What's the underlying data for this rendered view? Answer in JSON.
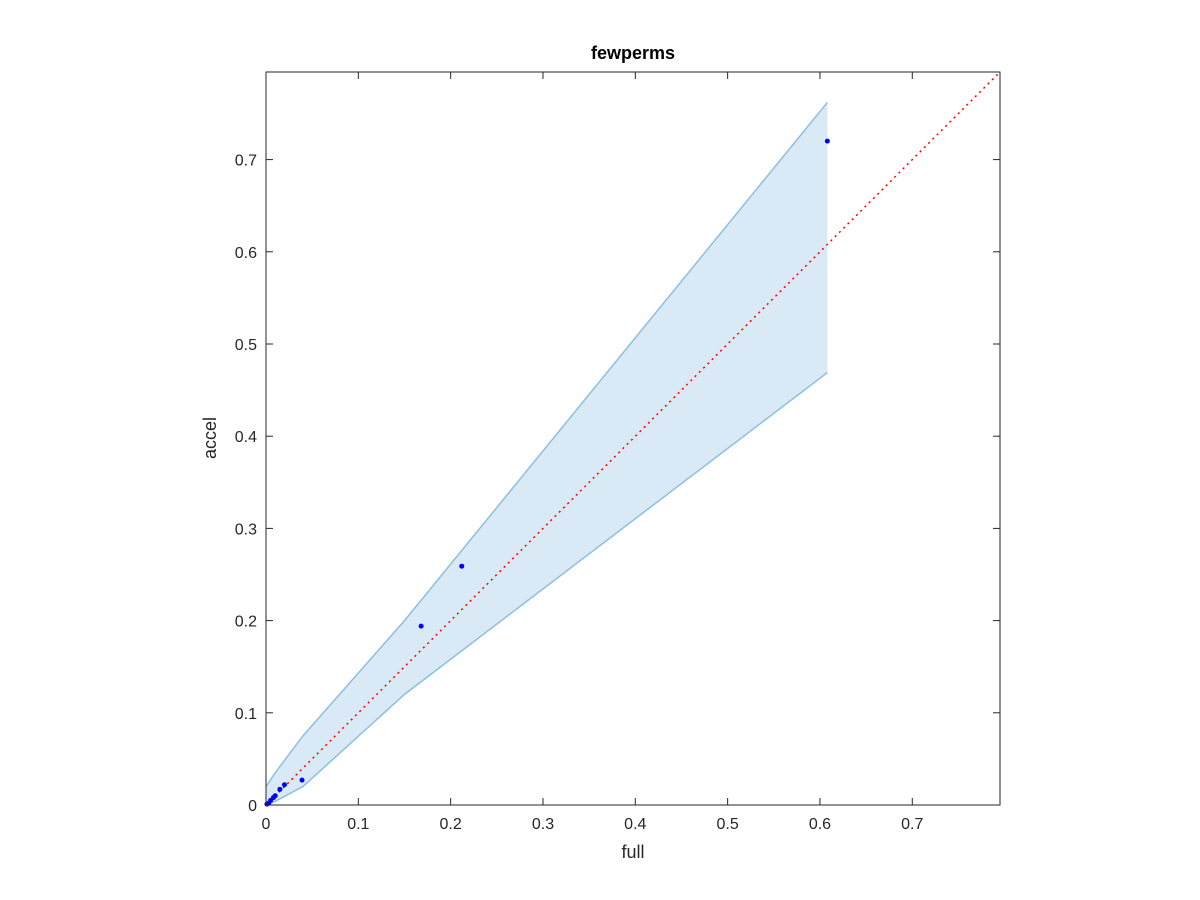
{
  "chart_data": {
    "type": "scatter",
    "title": "fewperms",
    "xlabel": "full",
    "ylabel": "accel",
    "xlim": [
      0,
      0.795
    ],
    "ylim": [
      0,
      0.795
    ],
    "xticks": [
      0,
      0.1,
      0.2,
      0.3,
      0.4,
      0.5,
      0.6,
      0.7
    ],
    "yticks": [
      0,
      0.1,
      0.2,
      0.3,
      0.4,
      0.5,
      0.6,
      0.7
    ],
    "xtick_labels": [
      "0",
      "0.1",
      "0.2",
      "0.3",
      "0.4",
      "0.5",
      "0.6",
      "0.7"
    ],
    "ytick_labels": [
      "0",
      "0.1",
      "0.2",
      "0.3",
      "0.4",
      "0.5",
      "0.6",
      "0.7"
    ],
    "grid": false,
    "points": {
      "color": "#0000ff",
      "x": [
        0.001,
        0.003,
        0.005,
        0.008,
        0.01,
        0.015,
        0.02,
        0.039,
        0.168,
        0.212,
        0.608
      ],
      "y": [
        0.001,
        0.002,
        0.005,
        0.008,
        0.01,
        0.017,
        0.022,
        0.027,
        0.194,
        0.259,
        0.72
      ]
    },
    "band": {
      "color": "#d9e9f5",
      "edge_color": "#8cbfe0",
      "x": [
        0,
        0.01,
        0.04,
        0.15,
        0.608
      ],
      "upper": [
        0.02,
        0.035,
        0.075,
        0.2,
        0.762
      ],
      "lower": [
        0,
        0.004,
        0.02,
        0.12,
        0.469
      ]
    },
    "reference_line": {
      "style": "dotted",
      "color": "#ff0000",
      "from": [
        0,
        0
      ],
      "to": [
        0.795,
        0.795
      ]
    }
  }
}
